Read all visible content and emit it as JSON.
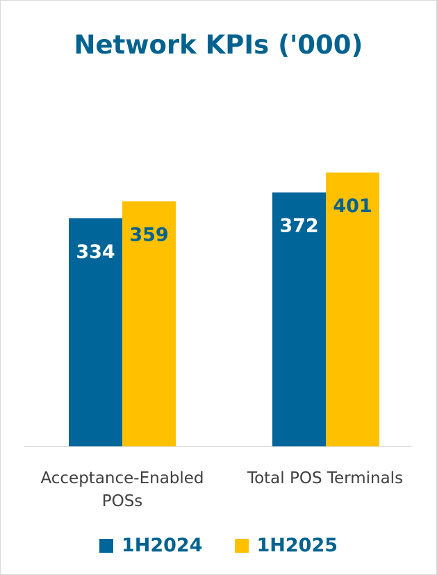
{
  "chart_data": {
    "type": "bar",
    "title": "Network KPIs ('000)",
    "categories": [
      "Acceptance-Enabled POSs",
      "Total POS Terminals"
    ],
    "series": [
      {
        "name": "1H2024",
        "color": "#006699",
        "label_color": "#ffffff",
        "values": [
          334,
          372
        ]
      },
      {
        "name": "1H2025",
        "color": "#ffc000",
        "label_color": "#00628f",
        "values": [
          359,
          401
        ]
      }
    ],
    "ylim": [
      0,
      480
    ],
    "grid": false,
    "legend_position": "bottom"
  }
}
